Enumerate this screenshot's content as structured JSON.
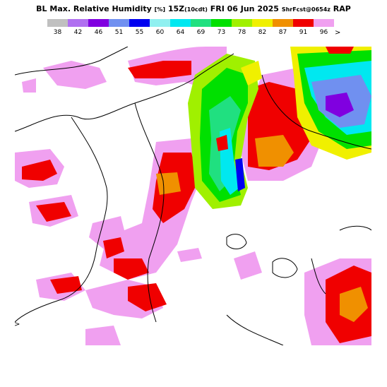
{
  "header": {
    "title_part1": "BL Max. Relative Humidity",
    "title_units": "[%]",
    "title_time": "15Z",
    "title_local": "(10cdt)",
    "title_date": "FRI 06 Jun 2025",
    "title_fcst": "ShrFcst@0654z",
    "title_model": "RAP"
  },
  "legend": {
    "colors": [
      "#c0c0c0",
      "#b070f0",
      "#8000e0",
      "#7090f0",
      "#0000f0",
      "#90f0f0",
      "#00e8f0",
      "#20e080",
      "#00e000",
      "#a0f000",
      "#f0f000",
      "#f09000",
      "#f00000",
      "#f0a0f0"
    ],
    "labels": [
      "38",
      "42",
      "46",
      "51",
      "55",
      "60",
      "64",
      "69",
      "73",
      "78",
      "82",
      "87",
      "91",
      "96"
    ],
    "overflow_glyph": ">"
  },
  "map": {
    "edge_marker": ">"
  }
}
